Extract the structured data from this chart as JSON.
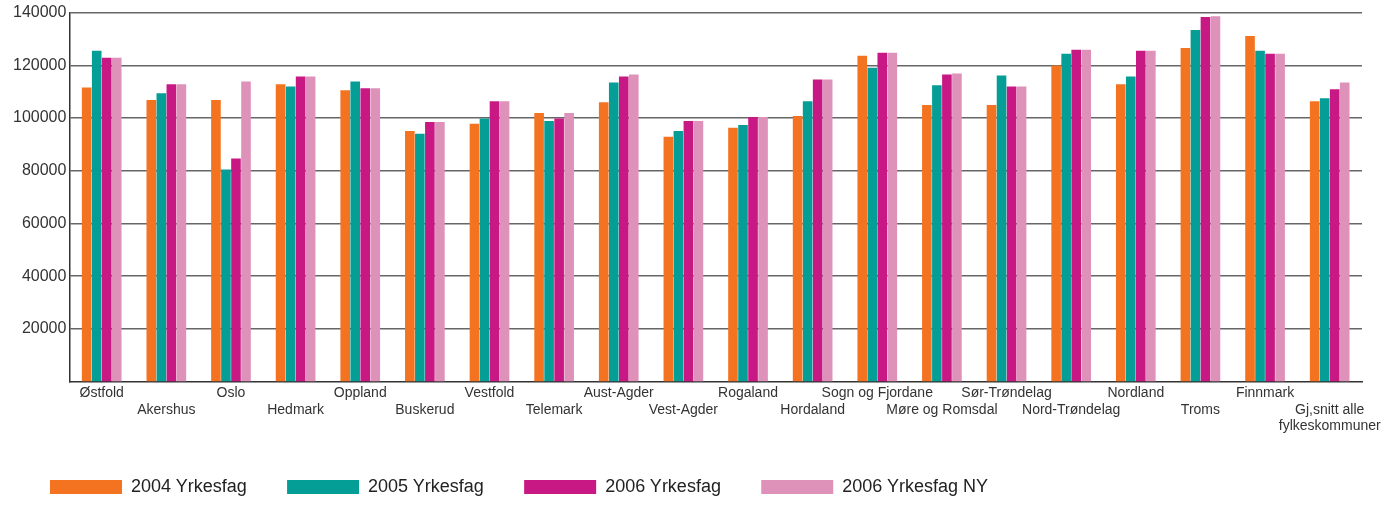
{
  "chart_data": {
    "type": "bar",
    "categories": [
      "Østfold",
      "Akershus",
      "Oslo",
      "Hedmark",
      "Oppland",
      "Buskerud",
      "Vestfold",
      "Telemark",
      "Aust-Agder",
      "Vest-Agder",
      "Rogaland",
      "Hordaland",
      "Sogn og Fjordane",
      "Møre og Romsdal",
      "Sør-Trøndelag",
      "Nord-Trøndelag",
      "Nordland",
      "Troms",
      "Finnmark",
      "Gj,snitt alle fylkeskommuner"
    ],
    "series": [
      {
        "name": "2004 Yrkesfag",
        "color": "#f47321",
        "values": [
          111600,
          106800,
          106800,
          112800,
          110500,
          95100,
          97800,
          101900,
          106000,
          92900,
          96300,
          100800,
          123600,
          104900,
          104900,
          119900,
          112800,
          126600,
          131100,
          106400
        ]
      },
      {
        "name": "2005 Yrkesfag",
        "color": "#059e96",
        "values": [
          125500,
          109400,
          80500,
          112000,
          113900,
          94000,
          99800,
          98900,
          113500,
          95100,
          97400,
          106400,
          119100,
          112400,
          116100,
          124400,
          115800,
          133400,
          125500,
          107500
        ]
      },
      {
        "name": "2006 Yrkesfag",
        "color": "#c81883",
        "values": [
          122900,
          112800,
          84600,
          115800,
          111300,
          98500,
          106400,
          99800,
          115800,
          98900,
          100400,
          114600,
          124800,
          116500,
          112000,
          125900,
          125500,
          138300,
          124400,
          110900
        ]
      },
      {
        "name": "2006 Yrkesfag NY",
        "color": "#de92ba",
        "values": [
          122900,
          112800,
          113900,
          115800,
          111300,
          98500,
          106400,
          101900,
          116500,
          98900,
          100400,
          114600,
          124800,
          116900,
          112000,
          125900,
          125500,
          138600,
          124400,
          113500
        ]
      }
    ],
    "ylim": [
      0,
      140000
    ],
    "yticks": [
      20000,
      40000,
      60000,
      80000,
      100000,
      120000,
      140000
    ],
    "grid": "y",
    "legend": "bottom"
  }
}
